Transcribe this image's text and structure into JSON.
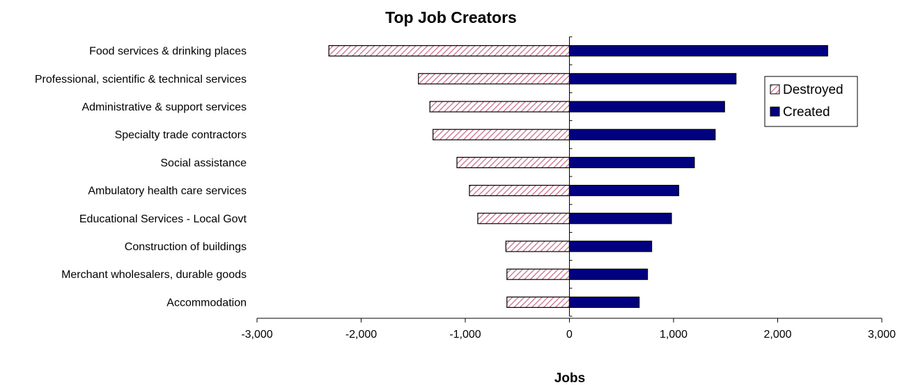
{
  "chart_data": {
    "type": "bar",
    "orientation": "horizontal",
    "stacked": "diverging",
    "title": "Top Job Creators",
    "xlabel": "Jobs",
    "ylabel": "",
    "xlim": [
      -3000,
      3000
    ],
    "xticks": [
      -3000,
      -2000,
      -1000,
      0,
      1000,
      2000,
      3000
    ],
    "xtick_labels": [
      "-3,000",
      "-2,000",
      "-1,000",
      "0",
      "1,000",
      "2,000",
      "3,000"
    ],
    "categories": [
      "Food services & drinking places",
      "Professional, scientific & technical services",
      "Administrative & support services",
      "Specialty trade contractors",
      "Social assistance",
      "Ambulatory health care services",
      "Educational Services - Local Govt",
      "Construction of buildings",
      "Merchant wholesalers, durable goods",
      "Accommodation"
    ],
    "series": [
      {
        "name": "Destroyed",
        "values": [
          -2310,
          -1450,
          -1340,
          -1310,
          -1080,
          -960,
          -880,
          -610,
          -600,
          -600
        ],
        "color": "#c8708a",
        "pattern": "diagonal-hatch"
      },
      {
        "name": "Created",
        "values": [
          2480,
          1600,
          1490,
          1400,
          1200,
          1050,
          980,
          790,
          750,
          670
        ],
        "color": "#000080"
      }
    ],
    "legend": {
      "position": "right",
      "entries": [
        "Destroyed",
        "Created"
      ]
    },
    "grid": false
  }
}
